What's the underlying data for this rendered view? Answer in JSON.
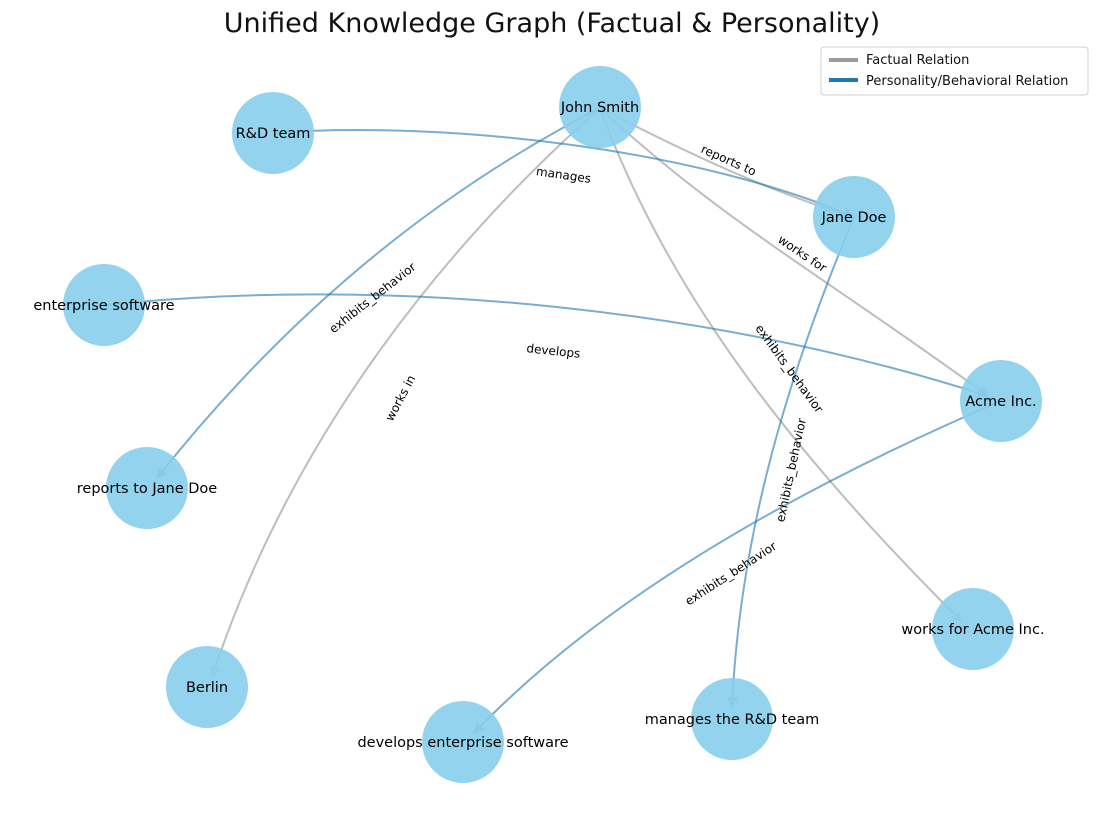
{
  "title": "Unified Knowledge Graph (Factual & Personality)",
  "colors": {
    "node": "#87ceeb",
    "factual": "#9a9a9a",
    "personality": "#1f77b4"
  },
  "legend": {
    "items": [
      {
        "label": "Factual Relation",
        "kind": "factual"
      },
      {
        "label": "Personality/Behavioral Relation",
        "kind": "personality"
      }
    ]
  },
  "nodes": [
    {
      "id": "john",
      "label": "John Smith"
    },
    {
      "id": "rd",
      "label": "R&D team"
    },
    {
      "id": "jane",
      "label": "Jane Doe"
    },
    {
      "id": "ent",
      "label": "enterprise software"
    },
    {
      "id": "acme",
      "label": "Acme Inc."
    },
    {
      "id": "rtj",
      "label": "reports to Jane Doe"
    },
    {
      "id": "wfa",
      "label": "works for Acme Inc."
    },
    {
      "id": "berlin",
      "label": "Berlin"
    },
    {
      "id": "mrd",
      "label": "manages the R&D team"
    },
    {
      "id": "des",
      "label": "develops enterprise software"
    }
  ],
  "edges": [
    {
      "id": "e1",
      "source": "john",
      "target": "jane",
      "label": "reports to",
      "kind": "factual"
    },
    {
      "id": "e2",
      "source": "john",
      "target": "acme",
      "label": "works for",
      "kind": "factual"
    },
    {
      "id": "e3",
      "source": "john",
      "target": "berlin",
      "label": "works in",
      "kind": "factual"
    },
    {
      "id": "e4",
      "source": "john",
      "target": "wfa",
      "label": "exhibits_behavior",
      "kind": "factual"
    },
    {
      "id": "e5",
      "source": "john",
      "target": "rtj",
      "label": "exhibits_behavior",
      "kind": "personality"
    },
    {
      "id": "e6",
      "source": "rd",
      "target": "jane",
      "label": "manages",
      "kind": "personality"
    },
    {
      "id": "e7",
      "source": "jane",
      "target": "mrd",
      "label": "exhibits_behavior",
      "kind": "personality"
    },
    {
      "id": "e8",
      "source": "ent",
      "target": "acme",
      "label": "develops",
      "kind": "personality"
    },
    {
      "id": "e9",
      "source": "acme",
      "target": "des",
      "label": "exhibits_behavior",
      "kind": "personality"
    }
  ]
}
